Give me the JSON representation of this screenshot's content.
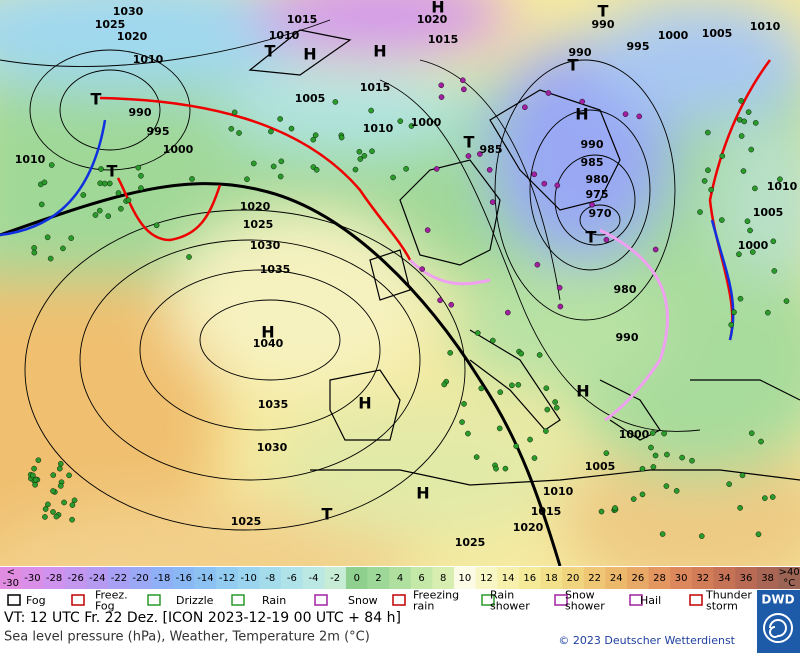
{
  "map": {
    "isobar_labels": [
      "1030",
      "1025",
      "1020",
      "1010",
      "1015",
      "1010",
      "1020",
      "1015",
      "1005",
      "990",
      "995",
      "1000",
      "1010",
      "1015",
      "1010",
      "1000",
      "985",
      "990",
      "995",
      "1000",
      "1005",
      "1010",
      "990",
      "990",
      "985",
      "980",
      "975",
      "970",
      "980",
      "990",
      "1010",
      "1005",
      "1000",
      "1020",
      "1025",
      "1030",
      "1035",
      "1040",
      "1035",
      "1030",
      "1025",
      "1000",
      "1005",
      "1010",
      "1015",
      "1020",
      "1025"
    ],
    "centers": [
      "H",
      "T",
      "H",
      "H",
      "T",
      "T",
      "T",
      "H",
      "T",
      "T",
      "T",
      "H",
      "H",
      "H",
      "H",
      "T"
    ]
  },
  "temperature_scale": {
    "under_label": [
      "<",
      "-30"
    ],
    "labels": [
      "-30",
      "-28",
      "-26",
      "-24",
      "-22",
      "-20",
      "-18",
      "-16",
      "-14",
      "-12",
      "-10",
      "-8",
      "-6",
      "-4",
      "-2",
      "0",
      "2",
      "4",
      "6",
      "8",
      "10",
      "12",
      "14",
      "16",
      "18",
      "20",
      "22",
      "24",
      "26",
      "28",
      "30",
      "32",
      "34",
      "36",
      "38"
    ],
    "over_label": [
      ">40",
      "°C"
    ],
    "colors": [
      "#e08ce0",
      "#d98ee8",
      "#cf92ee",
      "#c396f0",
      "#b69af2",
      "#a8a0f4",
      "#9aa8f6",
      "#8fb0f6",
      "#8ab8f4",
      "#8cc2f2",
      "#92ccf0",
      "#9ad4ee",
      "#a4dcec",
      "#b0e2ea",
      "#bce8e4",
      "#c6ecd6",
      "#8fd08f",
      "#9ed898",
      "#b0e0a0",
      "#c4e8a8",
      "#d8eeb0",
      "#fbfbe6",
      "#f8f6c4",
      "#f6f0ac",
      "#f4ea98",
      "#f2e08a",
      "#f0d47e",
      "#eec674",
      "#ecb86c",
      "#e8a866",
      "#e49660",
      "#dc885c",
      "#d27c58",
      "#c67256",
      "#b86a54",
      "#aa6654",
      "#9c6454"
    ]
  },
  "weather_legend": [
    [
      "Fog"
    ],
    [
      "Freez.",
      "Fog"
    ],
    [
      "Drizzle"
    ],
    [
      "Rain"
    ],
    [
      "Snow"
    ],
    [
      "Freezing",
      "rain"
    ],
    [
      "Rain",
      "shower"
    ],
    [
      "Snow",
      "shower"
    ],
    [
      "Hail"
    ],
    [
      "Thunder",
      "storm"
    ]
  ],
  "footer": {
    "valid_time": "VT: 12 UTC Fr.  22 Dez. [ICON 2023-12-19  00 UTC + 84 h]",
    "caption": "Sea level pressure (hPa), Weather, Temperature 2m (°C)",
    "copyright": "© 2023 Deutscher Wetterdienst",
    "logo": "DWD"
  }
}
